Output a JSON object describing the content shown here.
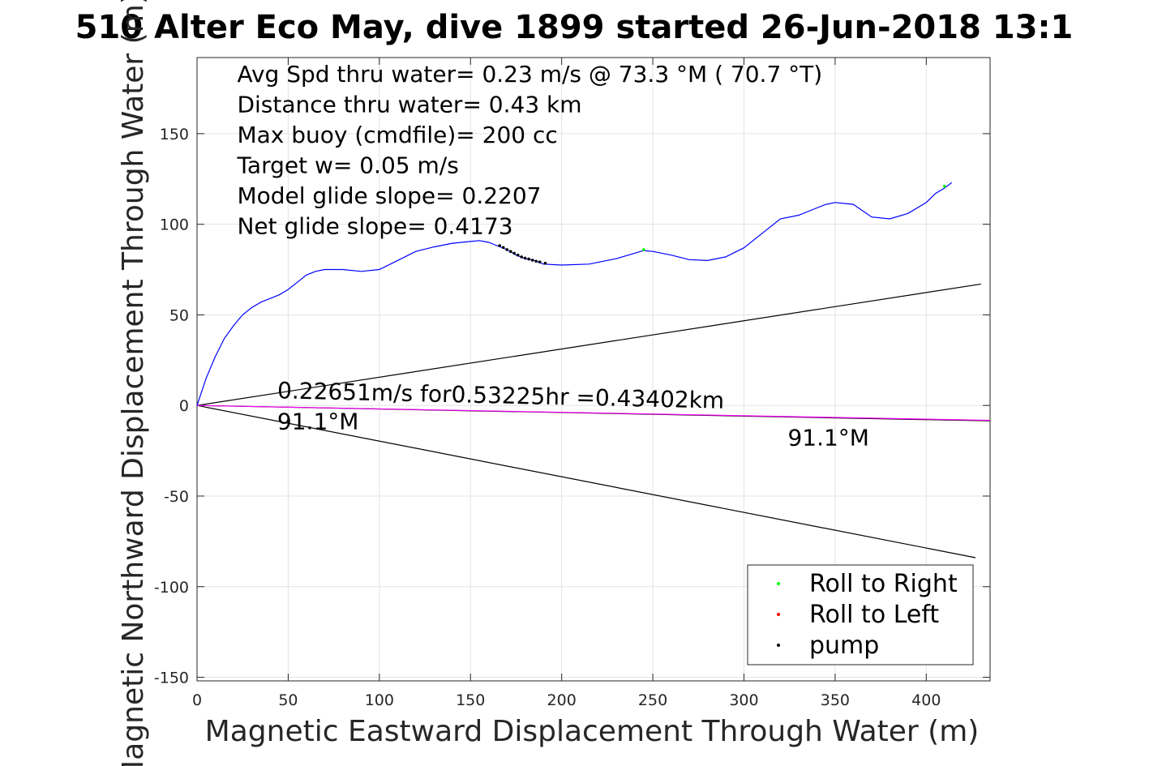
{
  "chart_data": {
    "type": "line",
    "title": "510 Alter Eco May, dive 1899 started 26-Jun-2018 13:1",
    "xlabel": "Magnetic Eastward Displacement Through Water (m)",
    "ylabel": "Magnetic Northward Displacement Through Water (m)",
    "xlim": [
      0,
      435
    ],
    "ylim": [
      -152,
      192
    ],
    "xticks": [
      0,
      50,
      100,
      150,
      200,
      250,
      300,
      350,
      400
    ],
    "yticks": [
      -150,
      -100,
      -50,
      0,
      50,
      100,
      150
    ],
    "grid": true,
    "legend_position": "bottom-right",
    "annotations_top_left": [
      "Avg Spd thru water=  0.23 m/s @  73.3 °M ( 70.7 °T)",
      "Distance thru water=  0.43 km",
      "Max buoy (cmdfile)= 200 cc",
      "Target w= 0.05 m/s",
      "Model glide slope= 0.2207",
      "Net glide slope= 0.4173"
    ],
    "mid_annotations": [
      {
        "text": "0.22651m/s for0.53225hr =0.43402km",
        "x": 44,
        "y": 4
      },
      {
        "text": "91.1°M",
        "x": 44,
        "y": -13
      },
      {
        "text": "91.1°M",
        "x": 324,
        "y": -22
      }
    ],
    "track": {
      "name": "track",
      "color": "#0000ff",
      "x": [
        0,
        5,
        10,
        15,
        20,
        25,
        30,
        35,
        40,
        45,
        50,
        55,
        60,
        65,
        70,
        80,
        90,
        100,
        110,
        120,
        130,
        140,
        150,
        155,
        160,
        165,
        170,
        175,
        180,
        185,
        190,
        200,
        215,
        230,
        240,
        245,
        250,
        260,
        270,
        280,
        290,
        300,
        310,
        320,
        330,
        340,
        345,
        350,
        360,
        370,
        380,
        390,
        400,
        405,
        410,
        414
      ],
      "y": [
        0,
        15,
        27,
        37,
        44,
        50,
        54,
        57,
        59,
        61,
        64,
        68,
        72,
        74,
        75,
        75,
        74,
        75,
        80,
        85,
        87.5,
        89.5,
        90.5,
        91,
        90,
        88,
        86,
        83,
        81,
        80,
        78,
        77.5,
        78,
        81,
        84,
        85.5,
        85,
        83,
        80.5,
        80,
        82,
        87,
        95,
        103,
        105,
        109,
        111,
        112,
        111,
        104,
        103,
        106,
        112,
        117,
        120,
        123
      ]
    },
    "heading_line": {
      "color": "#ff00ff",
      "x": [
        0,
        435
      ],
      "y": [
        0,
        -8.2
      ]
    },
    "cone_lines": [
      {
        "color": "#000000",
        "x": [
          0,
          430
        ],
        "y": [
          0,
          67
        ]
      },
      {
        "color": "#000000",
        "x": [
          0,
          427
        ],
        "y": [
          0,
          -84
        ]
      },
      {
        "color": "#000000",
        "x": [
          0,
          435
        ],
        "y": [
          0,
          -8.5
        ]
      }
    ],
    "series": [
      {
        "name": "Roll to Right",
        "color": "#00ff00",
        "marker": "dot",
        "x": [
          245,
          410
        ],
        "y": [
          86,
          121
        ]
      },
      {
        "name": "Roll to Left",
        "color": "#ff0000",
        "marker": "dot",
        "x": [],
        "y": []
      },
      {
        "name": "pump",
        "color": "#000000",
        "marker": "dot",
        "x": [
          166,
          168,
          170,
          172,
          174,
          176,
          178,
          180,
          182,
          184,
          186,
          188,
          191
        ],
        "y": [
          88.2,
          87.2,
          86,
          85,
          84,
          83,
          82,
          81.3,
          80.8,
          80.2,
          79.6,
          79.2,
          78.5
        ]
      }
    ]
  }
}
